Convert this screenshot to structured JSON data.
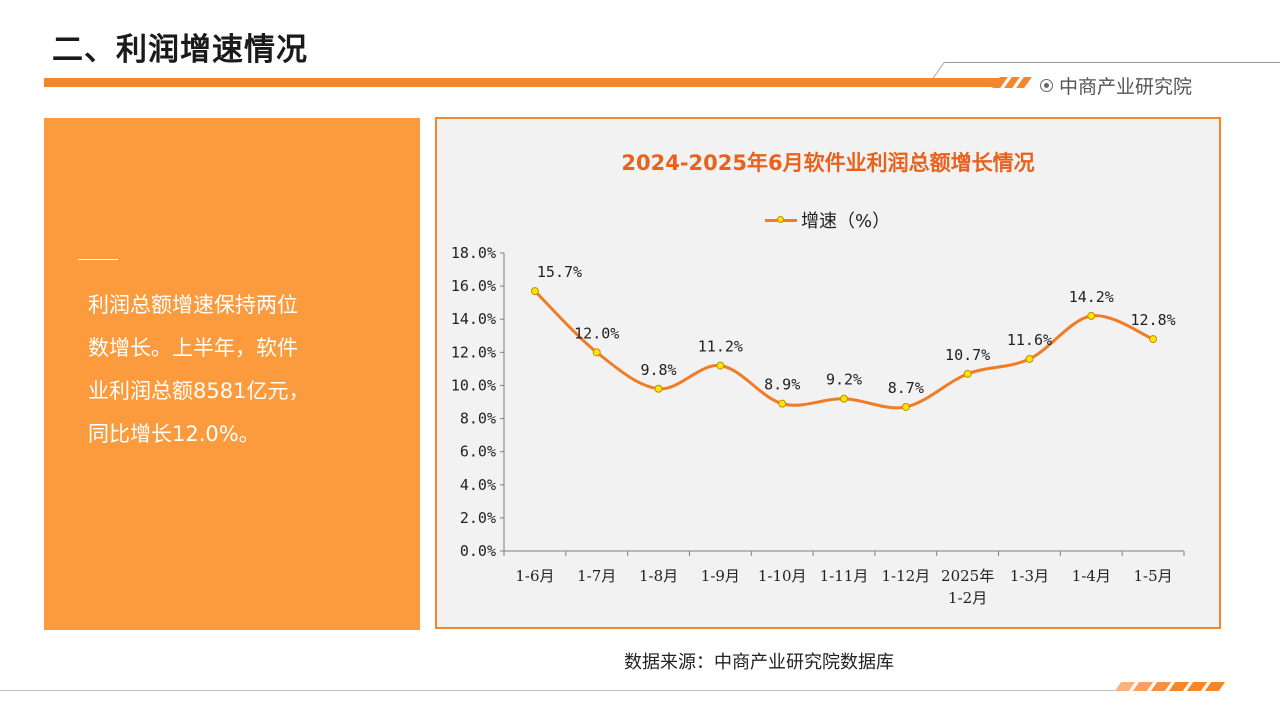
{
  "header": {
    "title": "二、利润增速情况",
    "brand": "中商产业研究院"
  },
  "left_panel": {
    "lines": [
      "利润总额增速保持两位",
      "数增长。上半年，软件",
      "业利润总额8581亿元，",
      "同比增长12.0%。"
    ]
  },
  "footer": {
    "source": "数据来源：中商产业研究院数据库"
  },
  "colors": {
    "accent": "#f5862a",
    "panel": "#fc9b3e",
    "title": "#e8621c",
    "line": "#f07c26",
    "marker": "#ffe600"
  },
  "chart_data": {
    "type": "line",
    "title": "2024-2025年6月软件业利润总额增长情况",
    "categories": [
      "1-6月",
      "1-7月",
      "1-8月",
      "1-9月",
      "1-10月",
      "1-11月",
      "1-12月",
      "2025年\n1-2月",
      "1-3月",
      "1-4月",
      "1-5月"
    ],
    "series": [
      {
        "name": "增速（%）",
        "values": [
          15.7,
          12.0,
          9.8,
          11.2,
          8.9,
          9.2,
          8.7,
          10.7,
          11.6,
          14.2,
          12.8
        ]
      }
    ],
    "data_labels": [
      "15.7%",
      "12.0%",
      "9.8%",
      "11.2%",
      "8.9%",
      "9.2%",
      "8.7%",
      "10.7%",
      "11.6%",
      "14.2%",
      "12.8%"
    ],
    "yticks": [
      "0.0%",
      "2.0%",
      "4.0%",
      "6.0%",
      "8.0%",
      "10.0%",
      "12.0%",
      "14.0%",
      "16.0%",
      "18.0%"
    ],
    "ylim": [
      0,
      18
    ],
    "xlabel": "",
    "ylabel": "",
    "legend": "top-center",
    "grid": false,
    "smooth": true
  }
}
